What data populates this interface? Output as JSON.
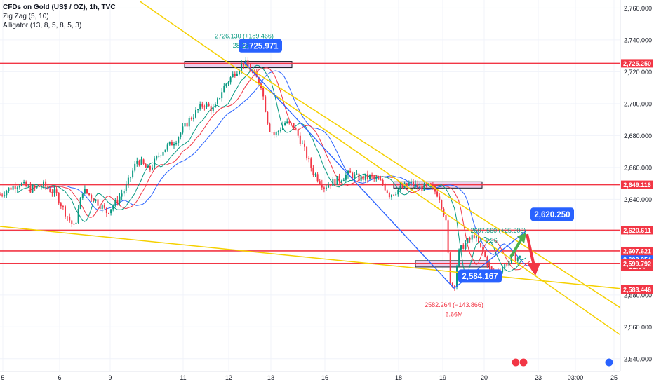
{
  "header": {
    "title": "CFDs on Gold (US$ / OZ), 1h, TVC",
    "indicator_1": "Zig Zag (5, 10)",
    "indicator_2": "Alligator (13, 8, 5, 8, 5, 3)"
  },
  "chart_data": {
    "type": "candlestick",
    "symbol": "CFDs on Gold (US$ / OZ)",
    "ylim": [
      2532,
      2765
    ],
    "y_ticks": [
      2540,
      2560,
      2580,
      2600,
      2620,
      2640,
      2660,
      2680,
      2700,
      2720,
      2740,
      2760
    ],
    "x_ticks": [
      {
        "label": "5",
        "bar": 4
      },
      {
        "label": "6",
        "bar": 85
      },
      {
        "label": "9",
        "bar": 157
      },
      {
        "label": "11",
        "bar": 261
      },
      {
        "label": "12",
        "bar": 326
      },
      {
        "label": "13",
        "bar": 386
      },
      {
        "label": "16",
        "bar": 463
      },
      {
        "label": "18",
        "bar": 568
      },
      {
        "label": "19",
        "bar": 631
      },
      {
        "label": "20",
        "bar": 690
      },
      {
        "label": "23",
        "bar": 767
      },
      {
        "label": "03:00",
        "bar": 820
      },
      {
        "label": "25",
        "bar": 875
      }
    ],
    "price_path": [
      [
        0,
        2643
      ],
      [
        14,
        2647
      ],
      [
        28,
        2650
      ],
      [
        45,
        2646
      ],
      [
        62,
        2649
      ],
      [
        80,
        2643
      ],
      [
        95,
        2630
      ],
      [
        106,
        2622
      ],
      [
        118,
        2646
      ],
      [
        135,
        2640
      ],
      [
        152,
        2632
      ],
      [
        165,
        2638
      ],
      [
        180,
        2648
      ],
      [
        196,
        2665
      ],
      [
        212,
        2658
      ],
      [
        230,
        2670
      ],
      [
        250,
        2677
      ],
      [
        270,
        2690
      ],
      [
        290,
        2700
      ],
      [
        305,
        2696
      ],
      [
        318,
        2710
      ],
      [
        335,
        2720
      ],
      [
        348,
        2725.971
      ],
      [
        360,
        2719
      ],
      [
        372,
        2712
      ],
      [
        383,
        2685
      ],
      [
        392,
        2680
      ],
      [
        405,
        2688
      ],
      [
        418,
        2686
      ],
      [
        430,
        2675
      ],
      [
        445,
        2658
      ],
      [
        462,
        2648
      ],
      [
        480,
        2652
      ],
      [
        498,
        2656
      ],
      [
        512,
        2653
      ],
      [
        528,
        2654
      ],
      [
        545,
        2650
      ],
      [
        555,
        2643
      ],
      [
        568,
        2646
      ],
      [
        585,
        2650
      ],
      [
        598,
        2647
      ],
      [
        612,
        2648
      ],
      [
        625,
        2643
      ],
      [
        635,
        2628
      ],
      [
        641,
        2590
      ],
      [
        647,
        2584.167
      ],
      [
        653,
        2606
      ],
      [
        660,
        2611
      ],
      [
        668,
        2614
      ],
      [
        676,
        2618
      ],
      [
        684,
        2610
      ],
      [
        692,
        2603
      ],
      [
        700,
        2594
      ],
      [
        708,
        2595
      ],
      [
        716,
        2597
      ],
      [
        724,
        2601
      ],
      [
        732,
        2604
      ],
      [
        742,
        2603.179
      ]
    ],
    "zigzag_points": [
      {
        "bar": 348,
        "price": 2725.971,
        "label": "2,725.971"
      },
      {
        "bar": 647,
        "price": 2584.167,
        "label": "2,584.167"
      },
      {
        "bar": 750,
        "price": 2620.25,
        "label": "2,620.250"
      }
    ],
    "price_labels": [
      {
        "text": "2,725.250",
        "price": 2725.25,
        "color": "#f23645"
      },
      {
        "text": "2,649.116",
        "price": 2649.116,
        "color": "#f23645"
      },
      {
        "text": "2,620.611",
        "price": 2620.611,
        "color": "#f23645"
      },
      {
        "text": "2,607.621",
        "price": 2607.621,
        "color": "#f23645"
      },
      {
        "text": "2,603.179",
        "price": 2603.179,
        "color": "#f23645"
      },
      {
        "text": "21:54",
        "price": 2597.7,
        "color": "#f23645"
      },
      {
        "text": "2,602.254",
        "price": 2602.254,
        "color": "#2962ff"
      },
      {
        "text": "2,599.814",
        "price": 2599.814,
        "color": "#089981"
      },
      {
        "text": "2,599.792",
        "price": 2599.792,
        "color": "#f23645"
      },
      {
        "text": "2,583.446",
        "price": 2583.446,
        "color": "#f23645"
      }
    ],
    "horizontal_levels": [
      2725.25,
      2649.116,
      2620.611,
      2607.621,
      2599.792
    ],
    "zones": [
      {
        "bar_from": 263,
        "bar_to": 416,
        "price_from": 2724.5,
        "price_to": 2726.5
      },
      {
        "bar_from": 561,
        "bar_to": 687,
        "price_from": 2648.5,
        "price_to": 2651.0
      },
      {
        "bar_from": 592,
        "bar_to": 697,
        "price_from": 2599.3,
        "price_to": 2601.5
      }
    ],
    "trendlines": [
      {
        "from": [
          200,
          2764
        ],
        "to": [
          884,
          2555
        ],
        "color": "#f5d000"
      },
      {
        "from": [
          349,
          2724
        ],
        "to": [
          884,
          2572
        ],
        "color": "#f5d000"
      },
      {
        "from": [
          0,
          2623
        ],
        "to": [
          884,
          2584
        ],
        "color": "#f5d000"
      }
    ],
    "annotations": [
      {
        "text": "2726.130 (+189.466)",
        "bar": 348,
        "price": 2741,
        "color": "#089981"
      },
      {
        "text": "28.15",
        "bar": 343,
        "price": 2735,
        "color": "#089981"
      },
      {
        "text": "2607.560 (+25.203)",
        "bar": 710,
        "price": 2619,
        "color": "#089981"
      },
      {
        "text": "1.96",
        "bar": 700,
        "price": 2613,
        "color": "#089981"
      },
      {
        "text": "2582.264 (−143.866)",
        "bar": 647,
        "price": 2572.5,
        "color": "#f23645"
      },
      {
        "text": "6.66M",
        "bar": 647,
        "price": 2566.5,
        "color": "#f23645"
      }
    ],
    "projection": {
      "from_bar": 728,
      "from_price": 2604,
      "peak_bar": 750,
      "peak_price": 2619,
      "target_bar": 762,
      "target_price": 2593
    },
    "colors": {
      "up": "#089981",
      "down": "#f23645",
      "level": "#f23645",
      "trend": "#f5d000",
      "zigzag": "#2962ff",
      "jaw": "#2962ff",
      "teeth": "#f23645",
      "lips": "#089981"
    }
  }
}
